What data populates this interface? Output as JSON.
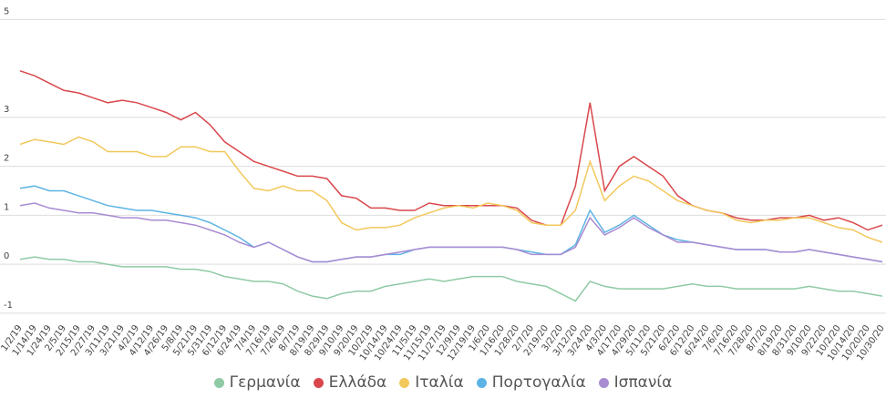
{
  "chart_data": {
    "type": "line",
    "categories": [
      "1/2/19",
      "1/14/19",
      "1/24/19",
      "2/5/19",
      "2/15/19",
      "2/27/19",
      "3/11/19",
      "3/21/19",
      "4/2/19",
      "4/12/19",
      "4/26/19",
      "5/8/19",
      "5/21/19",
      "5/31/19",
      "6/12/19",
      "6/24/19",
      "7/4/19",
      "7/16/19",
      "7/26/19",
      "8/7/19",
      "8/19/19",
      "8/29/19",
      "9/10/19",
      "9/20/19",
      "10/2/19",
      "10/14/19",
      "10/24/19",
      "11/5/19",
      "11/15/19",
      "11/27/19",
      "12/9/19",
      "12/19/19",
      "1/6/20",
      "1/16/20",
      "1/28/20",
      "2/7/20",
      "2/19/20",
      "3/2/20",
      "3/12/20",
      "3/24/20",
      "4/3/20",
      "4/17/20",
      "4/29/20",
      "5/11/20",
      "5/21/20",
      "6/2/20",
      "6/12/20",
      "6/24/20",
      "7/6/20",
      "7/16/20",
      "7/28/20",
      "8/7/20",
      "8/19/20",
      "8/31/20",
      "9/10/20",
      "9/22/20",
      "10/2/20",
      "10/14/20",
      "10/20/20",
      "10/30/20"
    ],
    "series": [
      {
        "name": "Γερμανία",
        "color": "#8fcaa5",
        "values": [
          0.1,
          0.15,
          0.1,
          0.1,
          0.05,
          0.05,
          0.0,
          -0.05,
          -0.05,
          -0.05,
          -0.05,
          -0.1,
          -0.1,
          -0.15,
          -0.25,
          -0.3,
          -0.35,
          -0.35,
          -0.4,
          -0.55,
          -0.65,
          -0.7,
          -0.6,
          -0.55,
          -0.55,
          -0.45,
          -0.4,
          -0.35,
          -0.3,
          -0.35,
          -0.3,
          -0.25,
          -0.25,
          -0.25,
          -0.35,
          -0.4,
          -0.45,
          -0.6,
          -0.75,
          -0.35,
          -0.45,
          -0.5,
          -0.5,
          -0.5,
          -0.5,
          -0.45,
          -0.4,
          -0.45,
          -0.45,
          -0.5,
          -0.5,
          -0.5,
          -0.5,
          -0.5,
          -0.45,
          -0.5,
          -0.55,
          -0.55,
          -0.6,
          -0.65
        ]
      },
      {
        "name": "Ελλάδα",
        "color": "#d9474c",
        "values": [
          3.95,
          3.85,
          3.7,
          3.55,
          3.5,
          3.4,
          3.3,
          3.35,
          3.3,
          3.2,
          3.1,
          2.95,
          3.1,
          2.85,
          2.5,
          2.3,
          2.1,
          2.0,
          1.9,
          1.8,
          1.8,
          1.75,
          1.4,
          1.35,
          1.15,
          1.15,
          1.1,
          1.1,
          1.25,
          1.2,
          1.2,
          1.2,
          1.2,
          1.2,
          1.15,
          0.9,
          0.8,
          0.8,
          1.6,
          3.3,
          1.5,
          2.0,
          2.2,
          2.0,
          1.8,
          1.4,
          1.2,
          1.1,
          1.05,
          0.95,
          0.9,
          0.9,
          0.95,
          0.95,
          1.0,
          0.9,
          0.95,
          0.85,
          0.7,
          0.8
        ]
      },
      {
        "name": "Ιταλία",
        "color": "#f2c85b",
        "values": [
          2.45,
          2.55,
          2.5,
          2.45,
          2.6,
          2.5,
          2.3,
          2.3,
          2.3,
          2.2,
          2.2,
          2.4,
          2.4,
          2.3,
          2.3,
          1.9,
          1.55,
          1.5,
          1.6,
          1.5,
          1.5,
          1.3,
          0.85,
          0.7,
          0.75,
          0.75,
          0.8,
          0.95,
          1.05,
          1.15,
          1.2,
          1.15,
          1.25,
          1.2,
          1.1,
          0.85,
          0.8,
          0.8,
          1.1,
          2.1,
          1.3,
          1.6,
          1.8,
          1.7,
          1.5,
          1.3,
          1.2,
          1.1,
          1.05,
          0.9,
          0.85,
          0.9,
          0.9,
          0.95,
          0.95,
          0.85,
          0.75,
          0.7,
          0.55,
          0.45
        ]
      },
      {
        "name": "Πορτογαλία",
        "color": "#5db4e4",
        "values": [
          1.55,
          1.6,
          1.5,
          1.5,
          1.4,
          1.3,
          1.2,
          1.15,
          1.1,
          1.1,
          1.05,
          1.0,
          0.95,
          0.85,
          0.7,
          0.55,
          0.35,
          0.45,
          0.3,
          0.15,
          0.05,
          0.05,
          0.1,
          0.15,
          0.15,
          0.2,
          0.2,
          0.3,
          0.35,
          0.35,
          0.35,
          0.35,
          0.35,
          0.35,
          0.3,
          0.25,
          0.2,
          0.2,
          0.4,
          1.1,
          0.65,
          0.8,
          1.0,
          0.8,
          0.6,
          0.5,
          0.45,
          0.4,
          0.35,
          0.3,
          0.3,
          0.3,
          0.25,
          0.25,
          0.3,
          0.25,
          0.2,
          0.15,
          0.1,
          0.05
        ]
      },
      {
        "name": "Ισπανία",
        "color": "#a98bd2",
        "values": [
          1.2,
          1.25,
          1.15,
          1.1,
          1.05,
          1.05,
          1.0,
          0.95,
          0.95,
          0.9,
          0.9,
          0.85,
          0.8,
          0.7,
          0.6,
          0.45,
          0.35,
          0.45,
          0.3,
          0.15,
          0.05,
          0.05,
          0.1,
          0.15,
          0.15,
          0.2,
          0.25,
          0.3,
          0.35,
          0.35,
          0.35,
          0.35,
          0.35,
          0.35,
          0.3,
          0.2,
          0.2,
          0.2,
          0.35,
          0.95,
          0.6,
          0.75,
          0.95,
          0.75,
          0.6,
          0.45,
          0.45,
          0.4,
          0.35,
          0.3,
          0.3,
          0.3,
          0.25,
          0.25,
          0.3,
          0.25,
          0.2,
          0.15,
          0.1,
          0.05
        ]
      }
    ],
    "ylim": [
      -1.15,
      5.1
    ],
    "yticks": [
      -1,
      0,
      1,
      2,
      3,
      5
    ],
    "grid": true
  }
}
